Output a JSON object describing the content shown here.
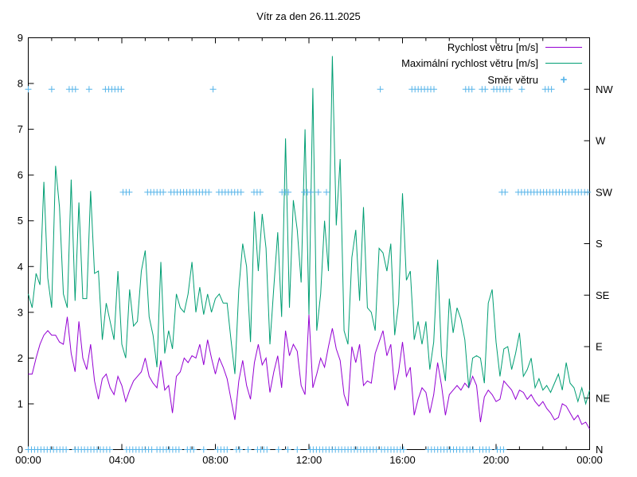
{
  "chart": {
    "title": "Vítr za den 26.11.2025",
    "legend_position": "top-right-inside"
  },
  "chart_data": {
    "type": "line",
    "title": "Vítr za den 26.11.2025",
    "x": {
      "unit": "time-of-day",
      "range_hours": [
        0,
        24
      ],
      "major_step_hours": 4,
      "minor_step_hours": 1,
      "major_tick_labels": [
        "00:00",
        "04:00",
        "08:00",
        "12:00",
        "16:00",
        "20:00",
        "00:00"
      ]
    },
    "y_left": {
      "range": [
        0,
        9
      ],
      "tick_step": 1,
      "label_values": [
        0,
        1,
        2,
        3,
        4,
        5,
        6,
        7,
        8,
        9
      ]
    },
    "y_right": {
      "directions": [
        "N",
        "NE",
        "E",
        "SE",
        "S",
        "SW",
        "W",
        "NW"
      ],
      "values": [
        0,
        1.125,
        2.25,
        3.375,
        4.5,
        5.625,
        6.75,
        7.875
      ]
    },
    "grid": false,
    "sample_step_hours": 0.1666667,
    "series": [
      {
        "name": "Rychlost větru [m/s]",
        "color": "#9400d3",
        "values": [
          1.65,
          1.65,
          2.0,
          2.3,
          2.5,
          2.6,
          2.5,
          2.5,
          2.35,
          2.3,
          2.9,
          2.1,
          1.7,
          2.8,
          2.0,
          1.75,
          2.3,
          1.5,
          1.1,
          1.55,
          1.65,
          1.35,
          1.2,
          1.6,
          1.4,
          1.05,
          1.3,
          1.5,
          1.6,
          1.7,
          2.0,
          1.6,
          1.45,
          1.35,
          1.95,
          1.3,
          1.4,
          0.8,
          1.6,
          1.7,
          2.0,
          1.9,
          2.05,
          2.0,
          2.3,
          1.85,
          2.4,
          2.0,
          1.65,
          2.0,
          1.8,
          1.55,
          1.1,
          0.65,
          1.5,
          1.95,
          1.4,
          1.1,
          1.9,
          2.3,
          1.85,
          2.0,
          1.25,
          1.7,
          2.05,
          1.35,
          2.6,
          2.05,
          2.3,
          2.15,
          1.4,
          1.2,
          2.95,
          1.35,
          1.65,
          2.0,
          1.8,
          2.25,
          2.65,
          2.2,
          1.95,
          1.2,
          0.95,
          2.25,
          1.9,
          2.3,
          1.4,
          1.5,
          1.45,
          2.1,
          2.35,
          2.6,
          2.05,
          2.3,
          1.3,
          1.7,
          2.35,
          1.6,
          1.8,
          0.75,
          1.1,
          1.35,
          1.25,
          0.8,
          1.2,
          1.9,
          1.4,
          0.75,
          1.2,
          1.3,
          1.4,
          1.3,
          1.45,
          1.35,
          1.6,
          1.4,
          0.6,
          1.15,
          1.3,
          1.2,
          1.05,
          1.1,
          1.5,
          1.4,
          1.3,
          1.1,
          1.3,
          1.25,
          1.1,
          1.2,
          1.05,
          0.95,
          1.05,
          0.9,
          0.8,
          0.65,
          0.7,
          1.0,
          0.95,
          0.8,
          0.65,
          0.75,
          0.55,
          0.6,
          0.45
        ]
      },
      {
        "name": "Maximální rychlost větru [m/s]",
        "color": "#009e73",
        "values": [
          3.4,
          3.1,
          3.85,
          3.6,
          5.85,
          3.75,
          3.1,
          6.2,
          5.3,
          3.4,
          3.1,
          5.9,
          3.25,
          5.4,
          3.3,
          3.3,
          5.65,
          3.85,
          3.9,
          2.4,
          3.2,
          2.8,
          2.4,
          3.9,
          2.3,
          2.0,
          3.5,
          2.7,
          2.8,
          3.9,
          4.35,
          2.9,
          2.5,
          1.8,
          4.1,
          2.1,
          2.6,
          2.2,
          3.4,
          3.1,
          3.0,
          3.4,
          4.1,
          3.0,
          3.55,
          2.95,
          3.4,
          3.0,
          3.3,
          3.4,
          3.2,
          3.2,
          2.4,
          1.65,
          3.5,
          4.5,
          4.0,
          2.35,
          5.2,
          3.9,
          5.15,
          4.4,
          2.3,
          3.55,
          4.75,
          2.9,
          6.8,
          3.1,
          5.45,
          4.8,
          3.65,
          7.0,
          2.95,
          7.9,
          2.6,
          3.4,
          5.0,
          3.9,
          8.6,
          4.9,
          6.35,
          2.6,
          2.3,
          4.2,
          4.8,
          3.25,
          5.3,
          3.1,
          3.0,
          2.6,
          4.4,
          4.3,
          3.9,
          4.5,
          2.5,
          3.2,
          5.6,
          3.7,
          3.9,
          2.4,
          2.8,
          2.3,
          2.8,
          1.75,
          2.35,
          4.15,
          2.05,
          1.5,
          3.3,
          2.55,
          3.1,
          2.85,
          2.4,
          1.35,
          2.0,
          2.05,
          2.0,
          1.45,
          3.2,
          3.5,
          2.35,
          1.6,
          2.2,
          2.25,
          1.75,
          2.1,
          2.55,
          1.6,
          1.75,
          2.0,
          1.35,
          1.55,
          1.3,
          1.4,
          1.25,
          1.45,
          1.65,
          1.3,
          1.9,
          1.45,
          1.35,
          1.05,
          1.35,
          1.0,
          1.3
        ]
      }
    ],
    "wind_direction": {
      "name": "Směr větru",
      "color": "#56b4e9",
      "marker": "+",
      "marker_step_hours": 0.135,
      "levels": {
        "N": 0,
        "NE": 1.125,
        "E": 2.25,
        "SE": 3.375,
        "S": 4.5,
        "SW": 5.625,
        "W": 6.75,
        "NW": 7.875
      },
      "runs": [
        {
          "dir": "NW",
          "spans": [
            [
              0,
              0
            ],
            [
              1.0,
              1.0
            ],
            [
              1.75,
              2.1
            ],
            [
              2.6,
              2.6
            ],
            [
              3.3,
              4.0
            ],
            [
              7.9,
              7.95
            ],
            [
              15.05,
              15.05
            ],
            [
              16.4,
              17.4
            ],
            [
              18.7,
              19.0
            ],
            [
              19.4,
              19.6
            ],
            [
              19.9,
              20.65
            ],
            [
              21.1,
              21.1
            ],
            [
              22.1,
              22.5
            ]
          ]
        },
        {
          "dir": "SW",
          "spans": [
            [
              4.05,
              4.45
            ],
            [
              5.1,
              5.9
            ],
            [
              6.1,
              7.75
            ],
            [
              8.15,
              9.2
            ],
            [
              9.65,
              10.05
            ],
            [
              10.85,
              11.25
            ],
            [
              11.8,
              12.1
            ],
            [
              12.4,
              12.45
            ],
            [
              12.75,
              12.85
            ],
            [
              20.25,
              20.5
            ],
            [
              20.95,
              24.0
            ]
          ]
        },
        {
          "dir": "N",
          "spans": [
            [
              0,
              1.7
            ],
            [
              2.0,
              3.6
            ],
            [
              4.2,
              5.3
            ],
            [
              5.5,
              6.5
            ],
            [
              6.8,
              7.2
            ],
            [
              7.5,
              7.6
            ],
            [
              8.1,
              8.6
            ],
            [
              8.9,
              9.1
            ],
            [
              9.4,
              9.5
            ],
            [
              9.8,
              10.3
            ],
            [
              10.7,
              10.8
            ],
            [
              11.1,
              11.2
            ],
            [
              11.5,
              11.6
            ],
            [
              12.05,
              14.95
            ],
            [
              15.1,
              16.15
            ],
            [
              17.1,
              18.6
            ],
            [
              18.75,
              19.15
            ],
            [
              19.3,
              19.75
            ],
            [
              20.05,
              20.4
            ]
          ]
        }
      ]
    }
  }
}
